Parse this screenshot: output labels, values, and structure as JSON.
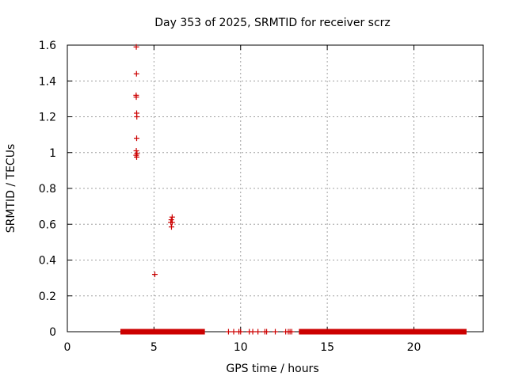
{
  "chart_data": {
    "type": "scatter",
    "title": "Day 353 of 2025, SRMTID for receiver scrz",
    "xlabel": "GPS time / hours",
    "ylabel": "SRMTID / TECUs",
    "xlim": [
      0,
      24
    ],
    "ylim": [
      0,
      1.6
    ],
    "xticks": [
      0,
      5,
      10,
      15,
      20
    ],
    "yticks": [
      0,
      0.2,
      0.4,
      0.6,
      0.8,
      1,
      1.2,
      1.4,
      1.6
    ],
    "ytick_labels": [
      "0",
      "0.2",
      "0.4",
      "0.6",
      "0.8",
      "1",
      "1.2",
      "1.4",
      "1.6"
    ],
    "grid": true,
    "marker": "+",
    "marker_color": "#cc0000",
    "points": [
      {
        "x": 3.98,
        "y": 1.59
      },
      {
        "x": 3.99,
        "y": 1.44
      },
      {
        "x": 3.97,
        "y": 1.32
      },
      {
        "x": 3.98,
        "y": 1.31
      },
      {
        "x": 4.0,
        "y": 1.22
      },
      {
        "x": 4.01,
        "y": 1.2
      },
      {
        "x": 4.0,
        "y": 1.08
      },
      {
        "x": 3.98,
        "y": 1.01
      },
      {
        "x": 4.02,
        "y": 0.995
      },
      {
        "x": 3.97,
        "y": 0.985
      },
      {
        "x": 4.0,
        "y": 0.975
      },
      {
        "x": 6.05,
        "y": 0.64
      },
      {
        "x": 6.0,
        "y": 0.625
      },
      {
        "x": 5.97,
        "y": 0.61
      },
      {
        "x": 6.05,
        "y": 0.61
      },
      {
        "x": 6.01,
        "y": 0.585
      },
      {
        "x": 5.05,
        "y": 0.32
      }
    ],
    "zero_segments": [
      {
        "x_start": 3.2,
        "x_end": 7.8,
        "y": 0
      },
      {
        "x_start": 13.5,
        "x_end": 22.9,
        "y": 0
      }
    ],
    "zero_points_x": [
      9.3,
      9.6,
      9.9,
      10.0,
      10.5,
      10.7,
      11.0,
      11.4,
      11.5,
      12.0,
      12.6,
      12.75,
      12.85,
      12.95
    ]
  }
}
